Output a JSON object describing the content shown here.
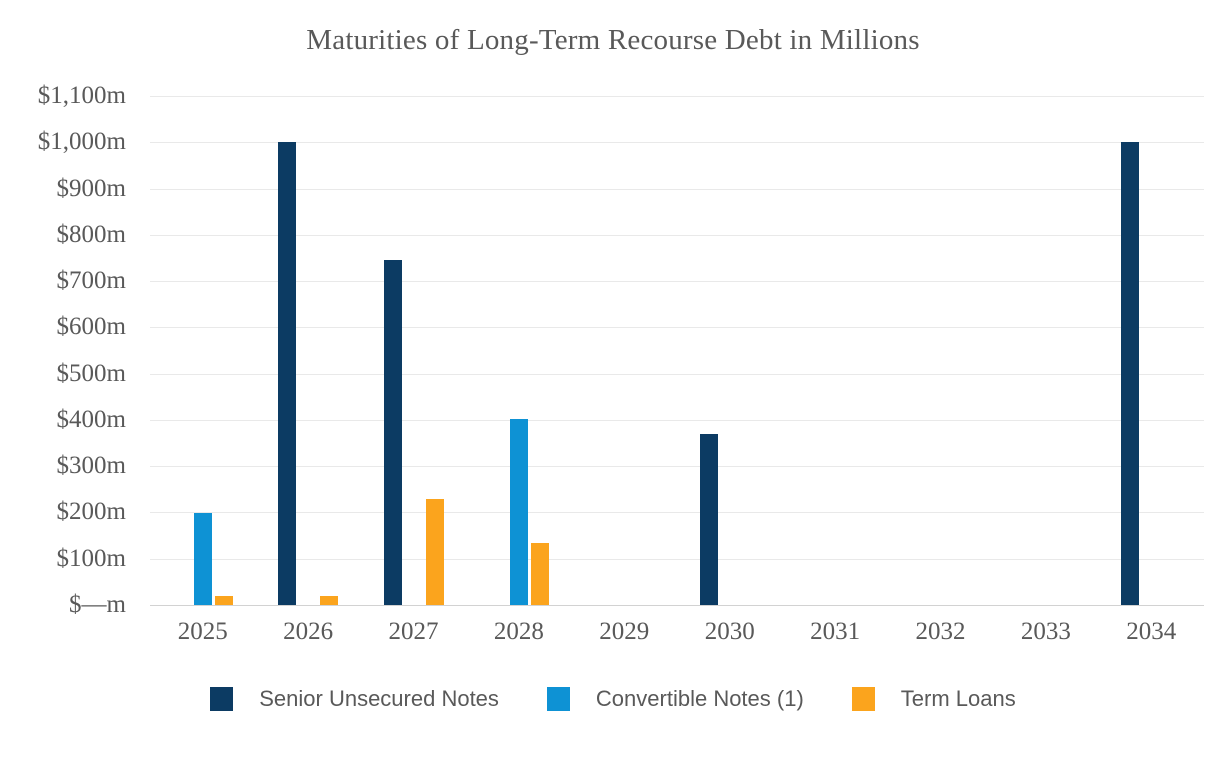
{
  "chart_data": {
    "type": "bar",
    "title": "Maturities of Long-Term Recourse Debt in Millions",
    "categories": [
      "2025",
      "2026",
      "2027",
      "2028",
      "2029",
      "2030",
      "2031",
      "2032",
      "2033",
      "2034"
    ],
    "series": [
      {
        "name": "Senior Unsecured Notes",
        "color": "#0c3b63",
        "values": [
          0,
          1000,
          745,
          0,
          0,
          370,
          0,
          0,
          0,
          1000
        ]
      },
      {
        "name": "Convertible Notes (1)",
        "color": "#0e92d4",
        "values": [
          198,
          0,
          0,
          402,
          0,
          0,
          0,
          0,
          0,
          0
        ]
      },
      {
        "name": "Term Loans",
        "color": "#fba41d",
        "values": [
          20,
          20,
          230,
          133,
          0,
          0,
          0,
          0,
          0,
          0
        ]
      }
    ],
    "y_axis": {
      "ylim": [
        0,
        1100
      ],
      "grid": true,
      "ticks": [
        {
          "value": 0,
          "label": "$—m"
        },
        {
          "value": 100,
          "label": "$100m"
        },
        {
          "value": 200,
          "label": "$200m"
        },
        {
          "value": 300,
          "label": "$300m"
        },
        {
          "value": 400,
          "label": "$400m"
        },
        {
          "value": 500,
          "label": "$500m"
        },
        {
          "value": 600,
          "label": "$600m"
        },
        {
          "value": 700,
          "label": "$700m"
        },
        {
          "value": 800,
          "label": "$800m"
        },
        {
          "value": 900,
          "label": "$900m"
        },
        {
          "value": 1000,
          "label": "$1,000m"
        },
        {
          "value": 1100,
          "label": "$1,100m"
        }
      ]
    },
    "xlabel": "",
    "ylabel": "",
    "legend": {
      "position": "bottom"
    },
    "text_color": "#595959",
    "gridline_color": "#e9e9e9",
    "axisline_color": "#d2d2d2",
    "background_color": "#ffffff"
  }
}
